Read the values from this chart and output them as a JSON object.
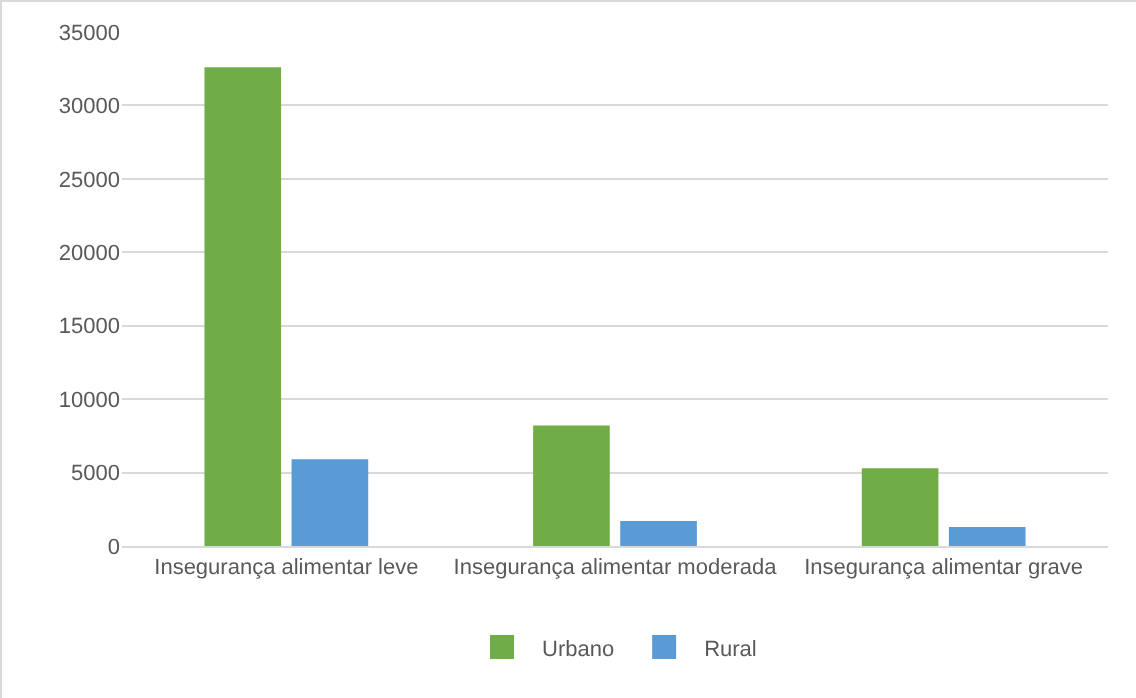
{
  "chart_data": {
    "type": "bar",
    "categories": [
      "Insegurança alimentar leve",
      "Insegurança alimentar moderada",
      "Insegurança alimentar grave"
    ],
    "series": [
      {
        "name": "Urbano",
        "color": "#70ad47",
        "values": [
          32600,
          8200,
          5300
        ]
      },
      {
        "name": "Rural",
        "color": "#5b9bd5",
        "values": [
          5900,
          1700,
          1300
        ]
      }
    ],
    "ylim": [
      0,
      35000
    ],
    "yticks": [
      0,
      5000,
      10000,
      15000,
      20000,
      25000,
      30000,
      35000
    ],
    "grid": "y",
    "legend": "bottom"
  }
}
